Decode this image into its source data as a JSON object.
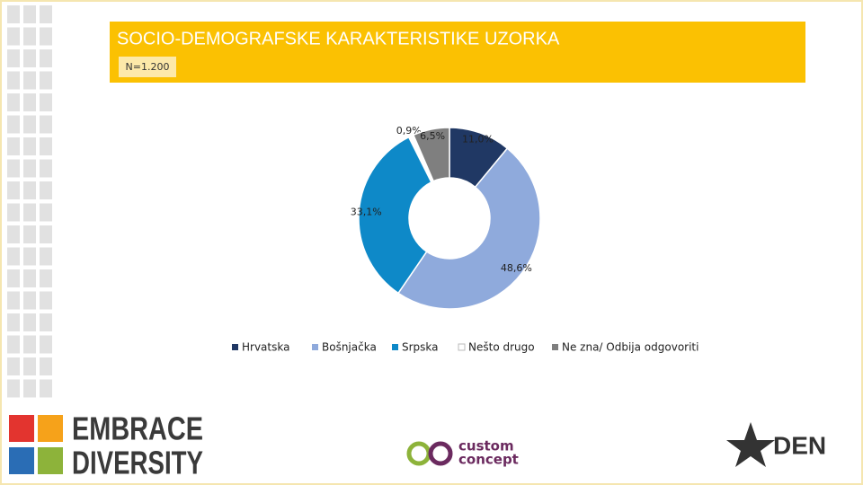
{
  "header": {
    "title": "SOCIO-DEMOGRAFSKE KARAKTERISTIKE UZORKA",
    "sample": "N=1.200"
  },
  "chart_data": {
    "type": "pie",
    "categories": [
      "Hrvatska",
      "Bošnjačka",
      "Srpska",
      "Nešto drugo",
      "Ne zna/ Odbija odgovoriti"
    ],
    "values": [
      11.0,
      48.6,
      33.1,
      0.9,
      6.5
    ],
    "value_labels": [
      "11,0%",
      "48,6%",
      "33,1%",
      "0,9%",
      "6,5%"
    ],
    "colors": [
      "#203864",
      "#8faadc",
      "#0e89c8",
      "#ffffff",
      "#7f7f7f"
    ],
    "legend": "bottom"
  },
  "logos": {
    "left": [
      "EMBRACE",
      "DIVERSITY"
    ],
    "center": [
      "custom",
      "concept"
    ],
    "right": "DEN"
  }
}
